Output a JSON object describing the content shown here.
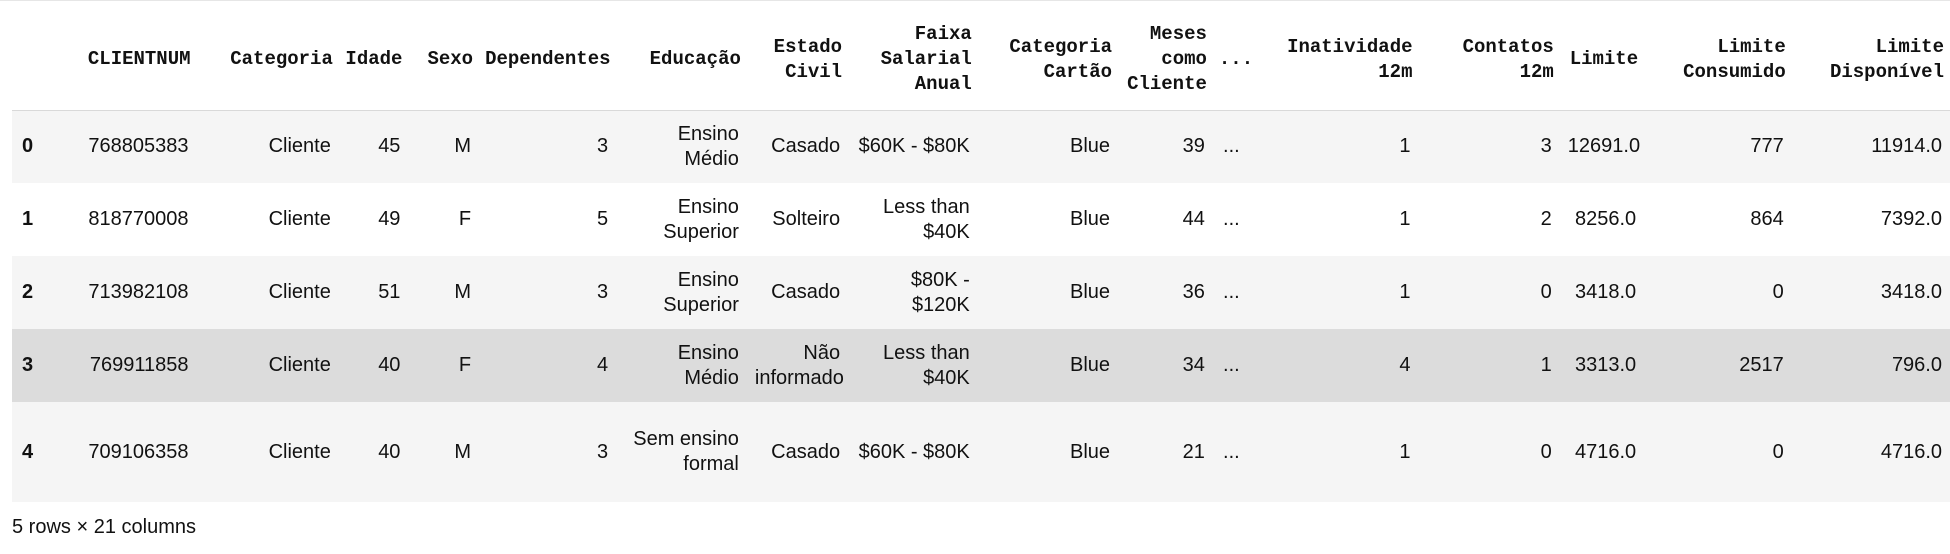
{
  "table": {
    "index_header": "",
    "columns": [
      "CLIENTNUM",
      "Categoria",
      "Idade",
      "Sexo",
      "Dependentes",
      "Educação",
      "Estado Civil",
      "Faixa Salarial Anual",
      "Categoria Cartão",
      "Meses como Cliente",
      "...",
      "Inatividade 12m",
      "Contatos 12m",
      "Limite",
      "Limite Consumido",
      "Limite Disponível"
    ],
    "rows": [
      {
        "index": "0",
        "cells": [
          "768805383",
          "Cliente",
          "45",
          "M",
          "3",
          "Ensino Médio",
          "Casado",
          "$60K - $80K",
          "Blue",
          "39",
          "...",
          "1",
          "3",
          "12691.0",
          "777",
          "11914.0"
        ]
      },
      {
        "index": "1",
        "cells": [
          "818770008",
          "Cliente",
          "49",
          "F",
          "5",
          "Ensino Superior",
          "Solteiro",
          "Less than $40K",
          "Blue",
          "44",
          "...",
          "1",
          "2",
          "8256.0",
          "864",
          "7392.0"
        ]
      },
      {
        "index": "2",
        "cells": [
          "713982108",
          "Cliente",
          "51",
          "M",
          "3",
          "Ensino Superior",
          "Casado",
          "$80K - $120K",
          "Blue",
          "36",
          "...",
          "1",
          "0",
          "3418.0",
          "0",
          "3418.0"
        ]
      },
      {
        "index": "3",
        "cells": [
          "769911858",
          "Cliente",
          "40",
          "F",
          "4",
          "Ensino Médio",
          "Não informado",
          "Less than $40K",
          "Blue",
          "34",
          "...",
          "4",
          "1",
          "3313.0",
          "2517",
          "796.0"
        ]
      },
      {
        "index": "4",
        "cells": [
          "709106358",
          "Cliente",
          "40",
          "M",
          "3",
          "Sem ensino formal",
          "Casado",
          "$60K - $80K",
          "Blue",
          "21",
          "...",
          "1",
          "0",
          "4716.0",
          "0",
          "4716.0"
        ]
      }
    ],
    "highlighted_row_index": "3"
  },
  "footer": {
    "shape_text": "5 rows × 21 columns"
  },
  "colors": {
    "row_stripe": "#f5f5f5",
    "row_hover": "#dcdcdc",
    "header_border": "#d9d9d9"
  }
}
